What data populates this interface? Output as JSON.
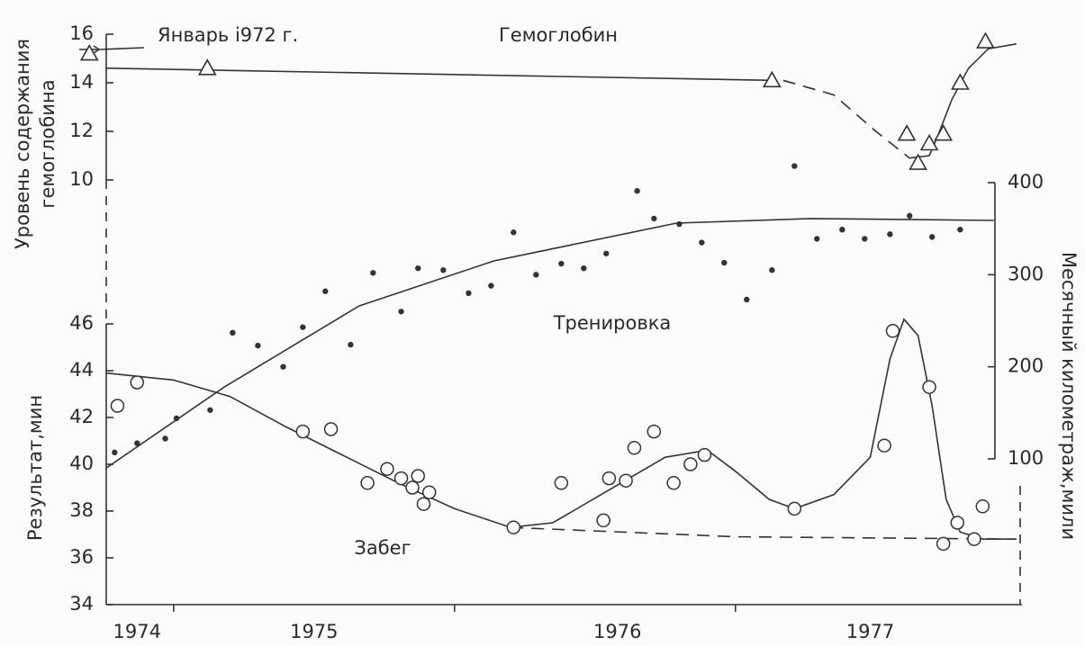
{
  "chart_data": [
    {
      "type": "scatter",
      "ylabel": [
        "Уровень содержания",
        "гемоглобина"
      ],
      "annotation": "Январь i972 г.",
      "label": "Гемоглобин",
      "xlim": [
        1974.68,
        1978.02
      ],
      "ylim": [
        10,
        16
      ],
      "yticks": [
        10,
        12,
        14,
        16
      ],
      "series": [
        {
          "name": "Гемоглобин",
          "marker": "triangle",
          "color": "#333333",
          "x": [
            1974.7,
            1975.12,
            1977.13,
            1977.61,
            1977.65,
            1977.69,
            1977.74,
            1977.8,
            1977.89
          ],
          "values": [
            15.2,
            14.6,
            14.1,
            11.9,
            10.7,
            11.5,
            11.9,
            14.0,
            15.7
          ]
        }
      ],
      "curves": [
        {
          "dash": false,
          "x": [
            1974.76,
            1977.13
          ],
          "values": [
            14.6,
            14.1
          ]
        },
        {
          "dash": true,
          "x": [
            1977.17,
            1977.35,
            1977.5,
            1977.62
          ],
          "values": [
            14.1,
            13.5,
            12.0,
            10.9
          ]
        },
        {
          "dash": false,
          "x": [
            1977.62,
            1977.69,
            1977.72,
            1977.77,
            1977.83,
            1977.9,
            1978.0
          ],
          "values": [
            10.9,
            11.0,
            11.8,
            13.3,
            14.6,
            15.4,
            15.6
          ]
        }
      ]
    },
    {
      "type": "scatter",
      "ylabel": [
        "Месячный километраж,мили"
      ],
      "label": "Тренировка",
      "axis_side": "right",
      "xlim": [
        1974.68,
        1978.02
      ],
      "ylim": [
        100,
        400
      ],
      "yticks": [
        100,
        200,
        300,
        400
      ],
      "series": [
        {
          "name": "Тренировка",
          "marker": "dot",
          "color": "#333333",
          "x": [
            1974.79,
            1974.87,
            1974.97,
            1975.01,
            1975.13,
            1975.21,
            1975.3,
            1975.39,
            1975.46,
            1975.54,
            1975.63,
            1975.71,
            1975.81,
            1975.87,
            1975.96,
            1976.05,
            1976.13,
            1976.21,
            1976.29,
            1976.38,
            1976.46,
            1976.54,
            1976.65,
            1976.71,
            1976.8,
            1976.88,
            1976.96,
            1977.04,
            1977.13,
            1977.21,
            1977.29,
            1977.38,
            1977.46,
            1977.55,
            1977.62,
            1977.7,
            1977.8
          ],
          "values": [
            107,
            117,
            122,
            144,
            153,
            237,
            223,
            200,
            243,
            282,
            224,
            302,
            260,
            307,
            305,
            280,
            288,
            346,
            300,
            312,
            307,
            323,
            391,
            361,
            355,
            335,
            313,
            273,
            305,
            418,
            339,
            349,
            339,
            344,
            364,
            341,
            349
          ]
        }
      ],
      "curves": [
        {
          "dash": false,
          "x": [
            1974.76,
            1975.18,
            1975.66,
            1976.14,
            1976.79,
            1977.27,
            1977.92
          ],
          "values": [
            90,
            178,
            266,
            315,
            356,
            361,
            359
          ]
        }
      ]
    },
    {
      "type": "scatter",
      "ylabel": [
        "Результат,мин"
      ],
      "label": "Забег",
      "xlim": [
        1974.68,
        1978.02
      ],
      "ylim": [
        34,
        46
      ],
      "yticks": [
        34,
        36,
        38,
        40,
        42,
        44,
        46
      ],
      "xticks": [
        {
          "value": 1974.87,
          "label": "1974"
        },
        {
          "value": 1975.5,
          "label": "1975"
        },
        {
          "value": 1976.58,
          "label": "1976"
        },
        {
          "value": 1977.48,
          "label": "1977"
        }
      ],
      "minor_xticks": [
        1975,
        1976,
        1977
      ],
      "series": [
        {
          "name": "Забег",
          "marker": "circle",
          "color": "#333333",
          "x": [
            1974.8,
            1974.87,
            1975.46,
            1975.56,
            1975.69,
            1975.76,
            1975.81,
            1975.87,
            1975.85,
            1975.91,
            1975.89,
            1976.21,
            1976.38,
            1976.53,
            1976.55,
            1976.61,
            1976.64,
            1976.71,
            1976.78,
            1976.84,
            1976.89,
            1977.21,
            1977.53,
            1977.56,
            1977.69,
            1977.79,
            1977.74,
            1977.85,
            1977.88
          ],
          "values": [
            42.5,
            43.5,
            41.4,
            41.5,
            39.2,
            39.8,
            39.4,
            39.5,
            39.0,
            38.8,
            38.3,
            37.3,
            39.2,
            37.6,
            39.4,
            39.3,
            40.7,
            41.4,
            39.2,
            40.0,
            40.4,
            38.1,
            40.8,
            45.7,
            43.3,
            37.5,
            36.6,
            36.8,
            38.2
          ]
        }
      ],
      "curves": [
        {
          "dash": false,
          "x": [
            1974.76,
            1975.0,
            1975.2,
            1975.4,
            1975.6,
            1975.8,
            1976.0,
            1976.2,
            1976.35,
            1976.55,
            1976.75,
            1976.9,
            1977.0,
            1977.12,
            1977.21,
            1977.35,
            1977.48,
            1977.55,
            1977.6,
            1977.65,
            1977.7,
            1977.75,
            1977.8,
            1977.88,
            1978.0
          ],
          "values": [
            43.9,
            43.6,
            42.9,
            41.6,
            40.4,
            39.2,
            38.1,
            37.3,
            37.5,
            38.9,
            40.3,
            40.6,
            39.7,
            38.5,
            38.1,
            38.7,
            40.3,
            44.5,
            46.2,
            45.5,
            42.5,
            38.5,
            37.1,
            36.8,
            36.8
          ]
        },
        {
          "dash": true,
          "x": [
            1976.2,
            1977.0,
            1978.0
          ],
          "values": [
            37.3,
            36.9,
            36.8
          ]
        }
      ]
    }
  ]
}
